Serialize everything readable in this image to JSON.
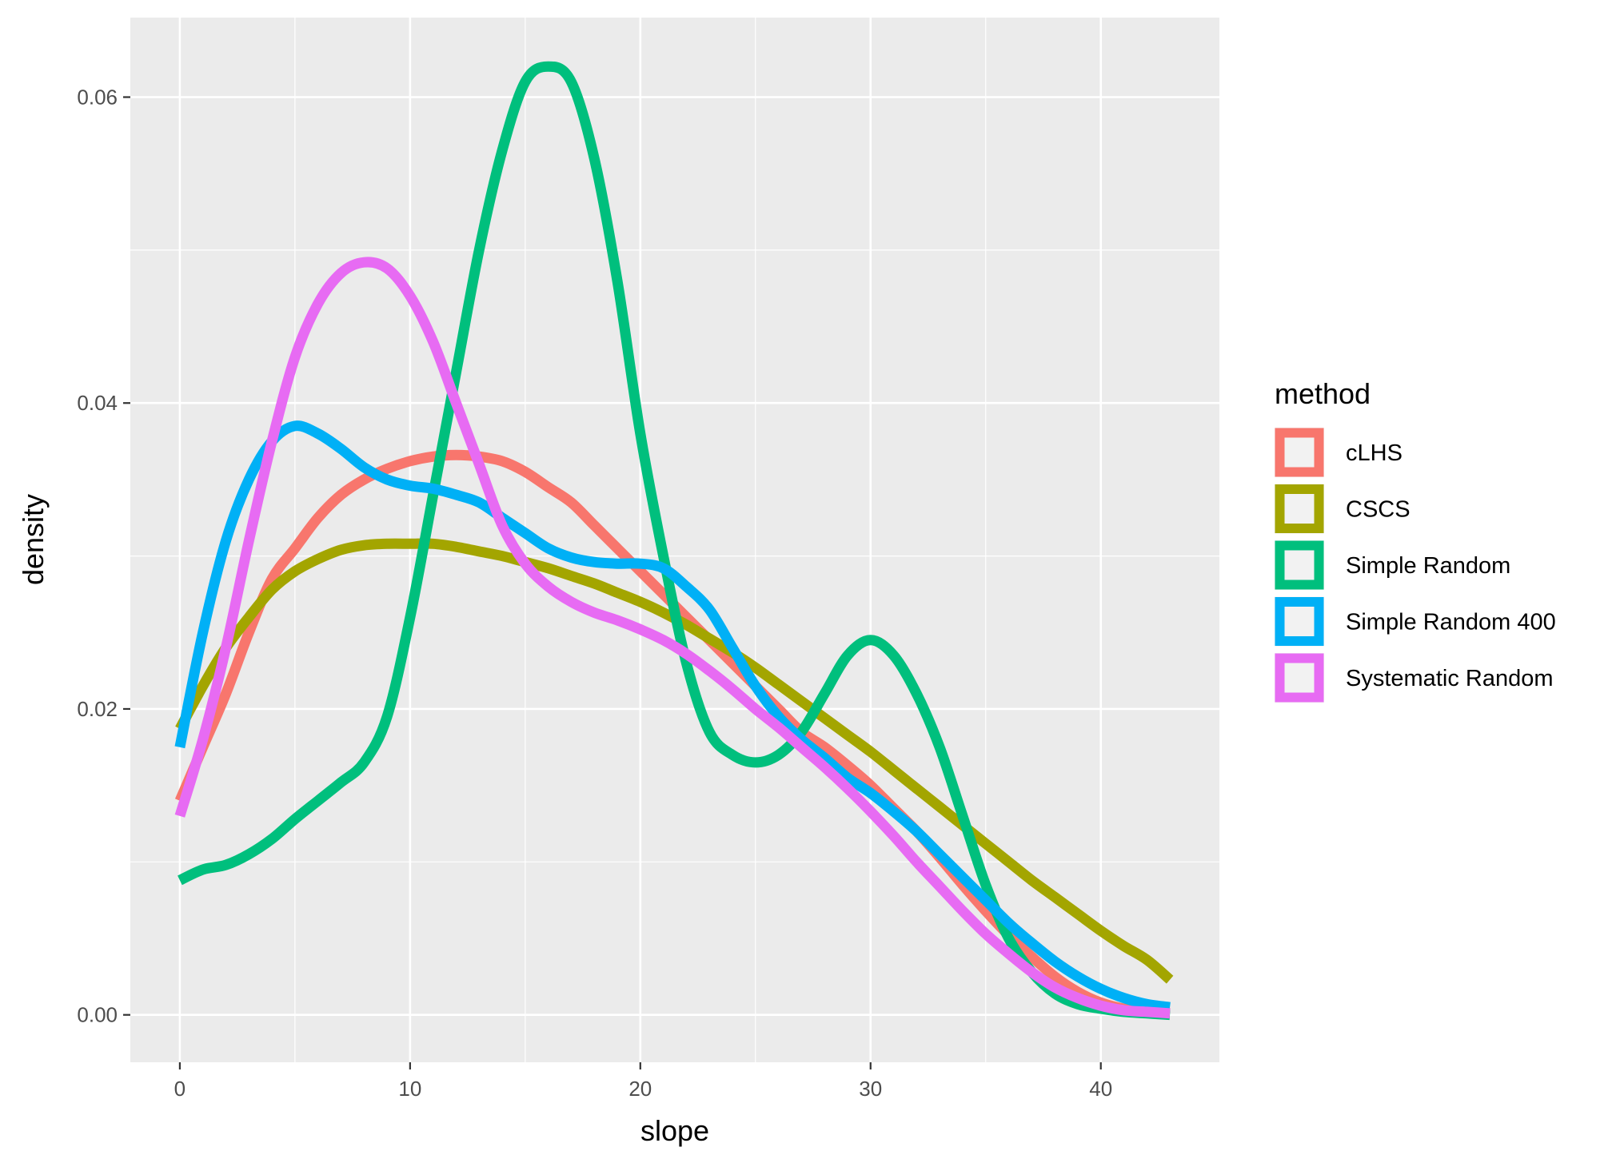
{
  "chart_data": {
    "type": "line",
    "title": "",
    "xlabel": "slope",
    "ylabel": "density",
    "xlim": [
      -2.15,
      45.15
    ],
    "ylim": [
      -0.0031,
      0.0652
    ],
    "x_ticks": [
      0,
      10,
      20,
      30,
      40
    ],
    "x_tick_labels": [
      "0",
      "10",
      "20",
      "30",
      "40"
    ],
    "y_ticks": [
      0.0,
      0.02,
      0.04,
      0.06
    ],
    "y_tick_labels": [
      "0.00",
      "0.02",
      "0.04",
      "0.06"
    ],
    "grid": true,
    "legend": {
      "title": "method",
      "position": "right"
    },
    "series": [
      {
        "name": "cLHS",
        "color": "#F8766D",
        "points": [
          [
            0,
            0.014
          ],
          [
            1,
            0.0175
          ],
          [
            2,
            0.021
          ],
          [
            3,
            0.025
          ],
          [
            4,
            0.0285
          ],
          [
            5,
            0.0305
          ],
          [
            6,
            0.0325
          ],
          [
            7,
            0.034
          ],
          [
            8,
            0.035
          ],
          [
            9,
            0.0357
          ],
          [
            10,
            0.0362
          ],
          [
            11,
            0.0365
          ],
          [
            12,
            0.0366
          ],
          [
            13,
            0.0365
          ],
          [
            14,
            0.0362
          ],
          [
            15,
            0.0355
          ],
          [
            16,
            0.0345
          ],
          [
            17,
            0.0335
          ],
          [
            18,
            0.032
          ],
          [
            19,
            0.0305
          ],
          [
            20,
            0.029
          ],
          [
            21,
            0.0275
          ],
          [
            22,
            0.026
          ],
          [
            23,
            0.0245
          ],
          [
            24,
            0.023
          ],
          [
            25,
            0.0215
          ],
          [
            26,
            0.02
          ],
          [
            27,
            0.0185
          ],
          [
            28,
            0.0175
          ],
          [
            29,
            0.0163
          ],
          [
            30,
            0.015
          ],
          [
            31,
            0.0135
          ],
          [
            32,
            0.012
          ],
          [
            33,
            0.0103
          ],
          [
            34,
            0.0085
          ],
          [
            35,
            0.0068
          ],
          [
            36,
            0.0052
          ],
          [
            37,
            0.0038
          ],
          [
            38,
            0.0025
          ],
          [
            39,
            0.0015
          ],
          [
            40,
            0.0008
          ],
          [
            41,
            0.0004
          ],
          [
            42,
            0.0002
          ],
          [
            43,
            0.0001
          ]
        ]
      },
      {
        "name": "CSCS",
        "color": "#A3A500",
        "points": [
          [
            0,
            0.0187
          ],
          [
            1,
            0.0215
          ],
          [
            2,
            0.024
          ],
          [
            3,
            0.026
          ],
          [
            4,
            0.0278
          ],
          [
            5,
            0.029
          ],
          [
            6,
            0.0298
          ],
          [
            7,
            0.0304
          ],
          [
            8,
            0.0307
          ],
          [
            9,
            0.0308
          ],
          [
            10,
            0.0308
          ],
          [
            11,
            0.0308
          ],
          [
            12,
            0.0306
          ],
          [
            13,
            0.0303
          ],
          [
            14,
            0.03
          ],
          [
            15,
            0.0296
          ],
          [
            16,
            0.0292
          ],
          [
            17,
            0.0287
          ],
          [
            18,
            0.0282
          ],
          [
            19,
            0.0276
          ],
          [
            20,
            0.027
          ],
          [
            21,
            0.0263
          ],
          [
            22,
            0.0255
          ],
          [
            23,
            0.0246
          ],
          [
            24,
            0.0237
          ],
          [
            25,
            0.0227
          ],
          [
            26,
            0.0216
          ],
          [
            27,
            0.0205
          ],
          [
            28,
            0.0194
          ],
          [
            29,
            0.0183
          ],
          [
            30,
            0.0172
          ],
          [
            31,
            0.016
          ],
          [
            32,
            0.0148
          ],
          [
            33,
            0.0136
          ],
          [
            34,
            0.0124
          ],
          [
            35,
            0.0112
          ],
          [
            36,
            0.01
          ],
          [
            37,
            0.0088
          ],
          [
            38,
            0.0077
          ],
          [
            39,
            0.0066
          ],
          [
            40,
            0.0055
          ],
          [
            41,
            0.0045
          ],
          [
            42,
            0.0036
          ],
          [
            43,
            0.0023
          ]
        ]
      },
      {
        "name": "Simple Random",
        "color": "#00BF7D",
        "points": [
          [
            0,
            0.0088
          ],
          [
            1,
            0.0095
          ],
          [
            2,
            0.0098
          ],
          [
            3,
            0.0105
          ],
          [
            4,
            0.0115
          ],
          [
            5,
            0.0128
          ],
          [
            6,
            0.014
          ],
          [
            7,
            0.0152
          ],
          [
            8,
            0.0165
          ],
          [
            9,
            0.0195
          ],
          [
            10,
            0.026
          ],
          [
            11,
            0.034
          ],
          [
            12,
            0.042
          ],
          [
            13,
            0.05
          ],
          [
            14,
            0.0565
          ],
          [
            15,
            0.061
          ],
          [
            16,
            0.062
          ],
          [
            17,
            0.061
          ],
          [
            18,
            0.056
          ],
          [
            19,
            0.048
          ],
          [
            20,
            0.038
          ],
          [
            21,
            0.03
          ],
          [
            22,
            0.023
          ],
          [
            23,
            0.0185
          ],
          [
            24,
            0.017
          ],
          [
            25,
            0.0165
          ],
          [
            26,
            0.017
          ],
          [
            27,
            0.0185
          ],
          [
            28,
            0.021
          ],
          [
            29,
            0.0235
          ],
          [
            30,
            0.0245
          ],
          [
            31,
            0.0235
          ],
          [
            32,
            0.021
          ],
          [
            33,
            0.0175
          ],
          [
            34,
            0.013
          ],
          [
            35,
            0.0085
          ],
          [
            36,
            0.005
          ],
          [
            37,
            0.0028
          ],
          [
            38,
            0.0014
          ],
          [
            39,
            0.0007
          ],
          [
            40,
            0.0004
          ],
          [
            41,
            0.0002
          ],
          [
            42,
            0.0001
          ],
          [
            43,
            0.0
          ]
        ]
      },
      {
        "name": "Simple Random 400",
        "color": "#00B0F6",
        "points": [
          [
            0,
            0.0175
          ],
          [
            1,
            0.025
          ],
          [
            2,
            0.031
          ],
          [
            3,
            0.035
          ],
          [
            4,
            0.0375
          ],
          [
            5,
            0.0385
          ],
          [
            6,
            0.038
          ],
          [
            7,
            0.037
          ],
          [
            8,
            0.0358
          ],
          [
            9,
            0.035
          ],
          [
            10,
            0.0346
          ],
          [
            11,
            0.0344
          ],
          [
            12,
            0.034
          ],
          [
            13,
            0.0335
          ],
          [
            14,
            0.0325
          ],
          [
            15,
            0.0315
          ],
          [
            16,
            0.0305
          ],
          [
            17,
            0.0299
          ],
          [
            18,
            0.0296
          ],
          [
            19,
            0.0295
          ],
          [
            20,
            0.0295
          ],
          [
            21,
            0.0292
          ],
          [
            22,
            0.028
          ],
          [
            23,
            0.0265
          ],
          [
            24,
            0.024
          ],
          [
            25,
            0.0215
          ],
          [
            26,
            0.0195
          ],
          [
            27,
            0.018
          ],
          [
            28,
            0.0168
          ],
          [
            29,
            0.0155
          ],
          [
            30,
            0.0145
          ],
          [
            31,
            0.0133
          ],
          [
            32,
            0.012
          ],
          [
            33,
            0.0105
          ],
          [
            34,
            0.009
          ],
          [
            35,
            0.0075
          ],
          [
            36,
            0.006
          ],
          [
            37,
            0.0047
          ],
          [
            38,
            0.0035
          ],
          [
            39,
            0.0025
          ],
          [
            40,
            0.0017
          ],
          [
            41,
            0.0011
          ],
          [
            42,
            0.0007
          ],
          [
            43,
            0.0005
          ]
        ]
      },
      {
        "name": "Systematic Random",
        "color": "#E76BF3",
        "points": [
          [
            0,
            0.013
          ],
          [
            1,
            0.018
          ],
          [
            2,
            0.024
          ],
          [
            3,
            0.031
          ],
          [
            4,
            0.0375
          ],
          [
            5,
            0.043
          ],
          [
            6,
            0.0465
          ],
          [
            7,
            0.0485
          ],
          [
            8,
            0.0492
          ],
          [
            9,
            0.0488
          ],
          [
            10,
            0.047
          ],
          [
            11,
            0.044
          ],
          [
            12,
            0.04
          ],
          [
            13,
            0.036
          ],
          [
            14,
            0.032
          ],
          [
            15,
            0.0295
          ],
          [
            16,
            0.028
          ],
          [
            17,
            0.027
          ],
          [
            18,
            0.0263
          ],
          [
            19,
            0.0258
          ],
          [
            20,
            0.0252
          ],
          [
            21,
            0.0245
          ],
          [
            22,
            0.0236
          ],
          [
            23,
            0.0225
          ],
          [
            24,
            0.0213
          ],
          [
            25,
            0.02
          ],
          [
            26,
            0.0188
          ],
          [
            27,
            0.0175
          ],
          [
            28,
            0.0162
          ],
          [
            29,
            0.0148
          ],
          [
            30,
            0.0133
          ],
          [
            31,
            0.0117
          ],
          [
            32,
            0.01
          ],
          [
            33,
            0.0084
          ],
          [
            34,
            0.0068
          ],
          [
            35,
            0.0053
          ],
          [
            36,
            0.004
          ],
          [
            37,
            0.0028
          ],
          [
            38,
            0.0018
          ],
          [
            39,
            0.0011
          ],
          [
            40,
            0.0006
          ],
          [
            41,
            0.0003
          ],
          [
            42,
            0.0002
          ],
          [
            43,
            0.0001
          ]
        ]
      }
    ]
  }
}
